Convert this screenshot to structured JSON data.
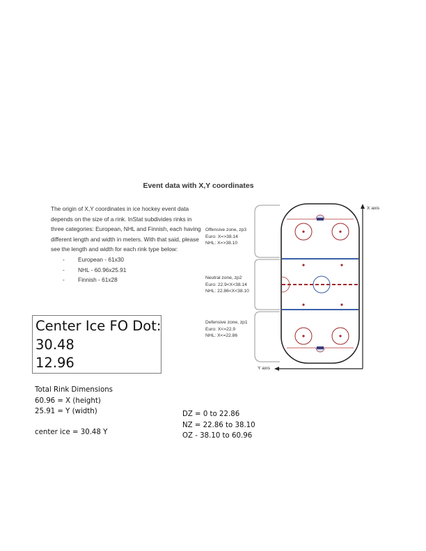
{
  "document": {
    "title": "Event data with X,Y coordinates",
    "intro_paragraph": "The origin of X,Y coordinates in ice hockey event data depends on the size of a rink. InStat subdivides rinks in three categories: European, NHL and Finnish, each having different length and width in meters. With that said, please see the length and width for each rink type below:",
    "rink_types": [
      "European - 61x30",
      "NHL - 60.96x25.91",
      "Finnish - 61x28"
    ]
  },
  "diagram": {
    "x_axis_label": "X axis",
    "y_axis_label": "Y axis",
    "zones": [
      {
        "title": "Offensive zone, zp3",
        "euro": "Euro: X=>38.14",
        "nhl": "NHL: X=>38.10"
      },
      {
        "title": "Neutral zone, zp2",
        "euro": "Euro: 22.9<X<38.14",
        "nhl": "NHL: 22.86<X<38.10"
      },
      {
        "title": "Defensive zone, zp1",
        "euro": "Euro: X<=22.9",
        "nhl": "NHL: X<=22.86"
      }
    ],
    "colors": {
      "blue_line": "#3a5fa8",
      "red_line": "#a02828",
      "board": "#222222"
    }
  },
  "center_ice_box": {
    "label": "Center Ice FO Dot:",
    "x_value": "30.48",
    "y_value": "12.96"
  },
  "dimensions": {
    "heading": "Total Rink Dimensions",
    "x_line": "60.96 = X (height)",
    "y_line": "25.91 = Y (width)",
    "center_line": "center ice = 30.48 Y"
  },
  "zone_ranges": {
    "dz": "DZ = 0 to 22.86",
    "nz": "NZ = 22.86 to 38.10",
    "oz": "OZ - 38.10 to 60.96"
  }
}
